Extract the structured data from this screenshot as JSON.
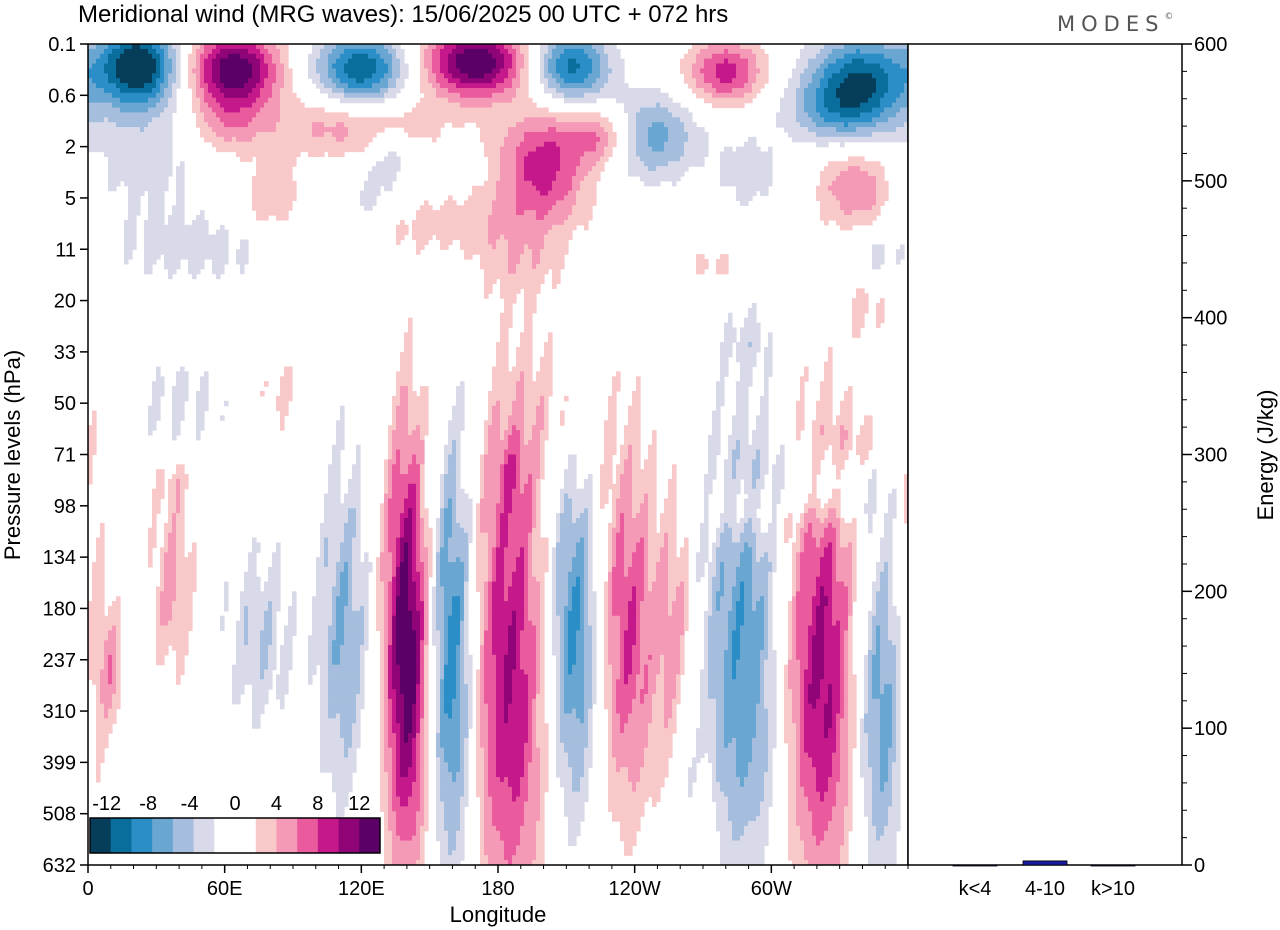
{
  "title": "Meridional wind (MRG waves):  15/06/2025  00 UTC  + 072 hrs",
  "logo": "MODES",
  "logo_mark": "©",
  "colors": {
    "neg": [
      "#053d5a",
      "#0a6e9c",
      "#2b8ec7",
      "#6aa6d2",
      "#a6bedd",
      "#d8daea"
    ],
    "pos": [
      "#f9c9c9",
      "#f59ab6",
      "#ea5b9e",
      "#c5188a",
      "#8f0477",
      "#5a0066"
    ],
    "bar": "#1a1aa0"
  },
  "chart_data": [
    {
      "type": "heatmap",
      "title": "Meridional wind (MRG waves):  15/06/2025  00 UTC  + 072 hrs",
      "xlabel": "Longitude",
      "ylabel": "Pressure levels (hPa)",
      "x_ticks": [
        "0",
        "60E",
        "120E",
        "180",
        "120W",
        "60W"
      ],
      "x_tick_degrees": [
        0,
        60,
        120,
        180,
        240,
        300
      ],
      "x_range_degrees": [
        0,
        360
      ],
      "y_ticks": [
        "0.1",
        "0.6",
        "2",
        "5",
        "11",
        "20",
        "33",
        "50",
        "71",
        "98",
        "134",
        "180",
        "237",
        "310",
        "399",
        "508",
        "632"
      ],
      "y_scale": "ordinal pressure levels",
      "colorbar": {
        "labels": [
          "-12",
          "-8",
          "-4",
          "0",
          "4",
          "8",
          "12"
        ],
        "levels": [
          -14,
          -12,
          -10,
          -8,
          -6,
          -4,
          -2,
          2,
          4,
          6,
          8,
          10,
          12,
          14
        ]
      },
      "features": [
        {
          "lon": 22,
          "lev": 0.4,
          "sx": 12,
          "sy": 0.55,
          "amp": -14
        },
        {
          "lon": 64,
          "lev": 0.5,
          "sx": 14,
          "sy": 0.55,
          "amp": 14
        },
        {
          "lon": 120,
          "lev": 0.5,
          "sx": 14,
          "sy": 0.5,
          "amp": -12
        },
        {
          "lon": 170,
          "lev": 0.35,
          "sx": 16,
          "sy": 0.5,
          "amp": 14
        },
        {
          "lon": 212,
          "lev": 0.45,
          "sx": 12,
          "sy": 0.5,
          "amp": -11
        },
        {
          "lon": 280,
          "lev": 0.55,
          "sx": 12,
          "sy": 0.45,
          "amp": 9
        },
        {
          "lon": 340,
          "lev": 0.6,
          "sx": 16,
          "sy": 0.6,
          "amp": -10
        },
        {
          "lon": 330,
          "lev": 1.3,
          "sx": 16,
          "sy": 0.5,
          "amp": -7
        },
        {
          "lon": 248,
          "lev": 1.8,
          "sx": 14,
          "sy": 0.6,
          "amp": -7
        },
        {
          "lon": 200,
          "lev": 2.4,
          "sx": 14,
          "sy": 0.8,
          "amp": 9
        },
        {
          "lon": 225,
          "lev": 1.8,
          "sx": 10,
          "sy": 0.4,
          "amp": 6
        },
        {
          "lon": 115,
          "lev": 1.6,
          "sx": 28,
          "sy": 0.45,
          "amp": 5
        },
        {
          "lon": 60,
          "lev": 1.6,
          "sx": 12,
          "sy": 0.45,
          "amp": 4
        },
        {
          "lon": 25,
          "lev": 2.0,
          "sx": 22,
          "sy": 1.1,
          "amp": -3
        },
        {
          "lon": 132,
          "lev": 2.1,
          "sx": 7,
          "sy": 0.35,
          "amp": -4
        },
        {
          "lon": 290,
          "lev": 2.5,
          "sx": 10,
          "sy": 0.6,
          "amp": -3
        },
        {
          "lon": 337,
          "lev": 2.8,
          "sx": 12,
          "sy": 0.6,
          "amp": 6
        },
        {
          "lon": 80,
          "lev": 3.0,
          "sx": 10,
          "sy": 0.5,
          "amp": 4
        },
        {
          "lon": 125,
          "lev": 3.0,
          "sx": 10,
          "sy": 0.4,
          "amp": -3
        },
        {
          "lon": 160,
          "lev": 3.5,
          "sx": 26,
          "sy": 0.45,
          "amp": 3
        },
        {
          "lon": 190,
          "lev": 4.3,
          "sx": 14,
          "sy": 0.5,
          "amp": 2.5
        },
        {
          "lon": 50,
          "lev": 4.0,
          "sx": 30,
          "sy": 0.5,
          "amp": -2.5
        },
        {
          "lon": 345,
          "lev": 4.1,
          "sx": 10,
          "sy": 0.4,
          "amp": -2.5
        },
        {
          "lon": 275,
          "lev": 4.3,
          "sx": 12,
          "sy": 0.25,
          "amp": 2.5
        },
        {
          "lon": 342,
          "lev": 5.1,
          "sx": 8,
          "sy": 0.45,
          "amp": 2.5
        },
        {
          "lon": 290,
          "lev": 5.8,
          "sx": 8,
          "sy": 0.5,
          "amp": -2.3
        },
        {
          "lon": 40,
          "lev": 7.0,
          "sx": 15,
          "sy": 0.6,
          "amp": -2.5
        },
        {
          "lon": 85,
          "lev": 6.8,
          "sx": 7,
          "sy": 0.5,
          "amp": 2.4
        },
        {
          "lon": 207,
          "lev": 7.3,
          "sx": 14,
          "sy": 1.2,
          "amp": 2.3
        },
        {
          "lon": 340,
          "lev": 7.8,
          "sx": 10,
          "sy": 0.4,
          "amp": 2.5
        },
        {
          "lon": 320,
          "lev": 8.6,
          "sx": 18,
          "sy": 0.5,
          "amp": -4
        },
        {
          "lon": 290,
          "lev": 9.0,
          "sx": 14,
          "sy": 0.45,
          "amp": 3
        },
        {
          "lon": 185,
          "lev": 8.4,
          "sx": 5,
          "sy": 0.5,
          "amp": 2.5
        },
        {
          "lon": 38,
          "lev": 8.6,
          "sx": 5,
          "sy": 0.3,
          "amp": 2.3
        },
        {
          "lon": 1,
          "lev": 12.5,
          "sx": 5,
          "sy": 3.5,
          "amp": 4
        },
        {
          "lon": 10,
          "lev": 12.2,
          "sx": 4,
          "sy": 0.9,
          "amp": 5
        },
        {
          "lon": 37,
          "lev": 10.5,
          "sx": 6,
          "sy": 1.2,
          "amp": 5
        },
        {
          "lon": 75,
          "lev": 11.6,
          "sx": 10,
          "sy": 1.2,
          "amp": -4
        },
        {
          "lon": 112,
          "lev": 11.5,
          "sx": 8,
          "sy": 2.3,
          "amp": -6
        },
        {
          "lon": 140,
          "lev": 11.8,
          "sx": 7,
          "sy": 3.0,
          "amp": 14
        },
        {
          "lon": 160,
          "lev": 12.0,
          "sx": 7,
          "sy": 3.0,
          "amp": -10
        },
        {
          "lon": 185,
          "lev": 12.3,
          "sx": 12,
          "sy": 3.5,
          "amp": 10
        },
        {
          "lon": 213,
          "lev": 11.5,
          "sx": 8,
          "sy": 2.5,
          "amp": -9
        },
        {
          "lon": 237,
          "lev": 11.5,
          "sx": 9,
          "sy": 2.5,
          "amp": 8
        },
        {
          "lon": 258,
          "lev": 11.7,
          "sx": 6,
          "sy": 1.8,
          "amp": 5
        },
        {
          "lon": 288,
          "lev": 12.0,
          "sx": 13,
          "sy": 3.0,
          "amp": -8
        },
        {
          "lon": 322,
          "lev": 12.3,
          "sx": 12,
          "sy": 3.0,
          "amp": 11
        },
        {
          "lon": 348,
          "lev": 13.0,
          "sx": 9,
          "sy": 2.4,
          "amp": -8
        },
        {
          "lon": 262,
          "lev": 13.8,
          "sx": 3,
          "sy": 1.0,
          "amp": -3
        },
        {
          "lon": 272,
          "lev": 15.5,
          "sx": 3,
          "sy": 0.9,
          "amp": 3
        }
      ]
    },
    {
      "type": "bar",
      "categories": [
        "k<4",
        "4-10",
        "k>10"
      ],
      "values": [
        0,
        3,
        0
      ],
      "ylabel": "Energy (J/kg)",
      "y_ticks": [
        "0",
        "100",
        "200",
        "300",
        "400",
        "500",
        "600"
      ],
      "ylim": [
        0,
        600
      ]
    }
  ]
}
